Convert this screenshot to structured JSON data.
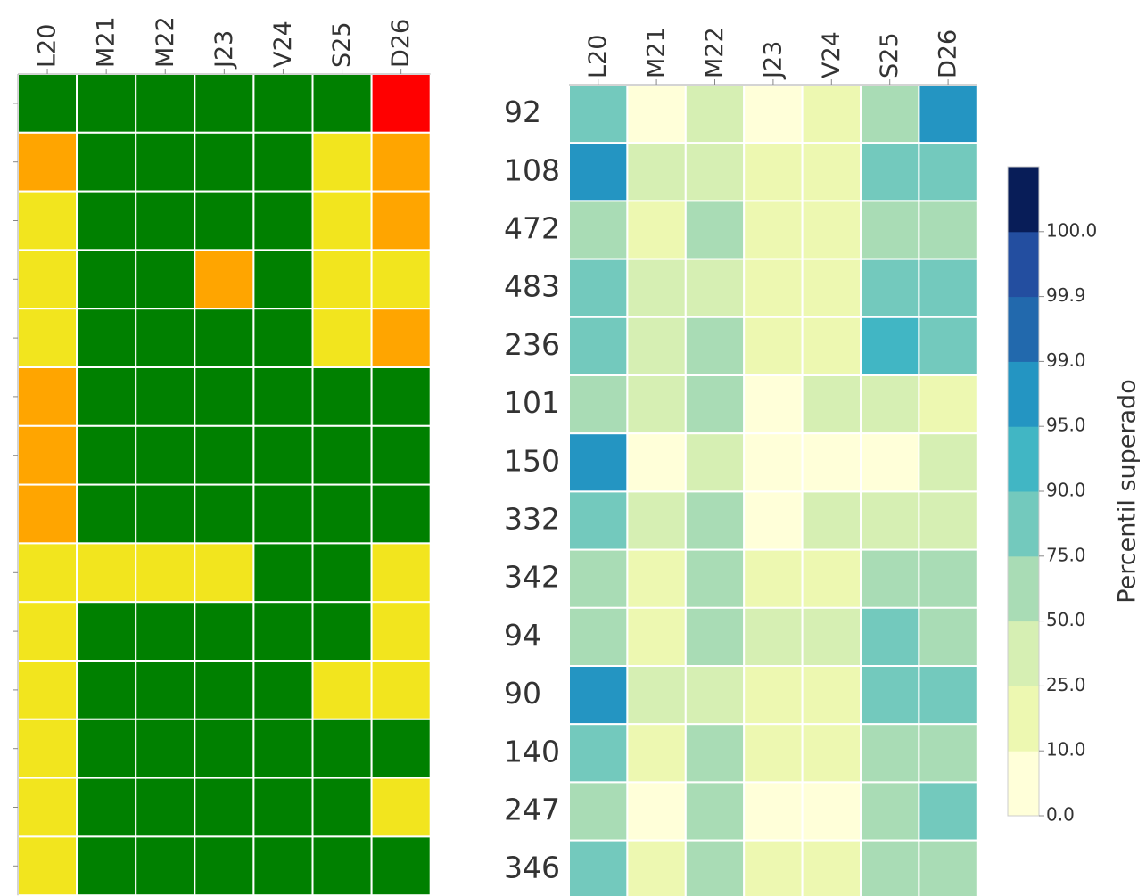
{
  "chart_data": [
    {
      "type": "heatmap",
      "categories": [
        "L20",
        "M21",
        "M22",
        "J23",
        "V24",
        "S25",
        "D26"
      ],
      "values": [
        [
          "#008000",
          "#008000",
          "#008000",
          "#008000",
          "#008000",
          "#008000",
          "#ff0000"
        ],
        [
          "#ffa500",
          "#008000",
          "#008000",
          "#008000",
          "#008000",
          "#f2e51e",
          "#ffa500"
        ],
        [
          "#f2e51e",
          "#008000",
          "#008000",
          "#008000",
          "#008000",
          "#f2e51e",
          "#ffa500"
        ],
        [
          "#f2e51e",
          "#008000",
          "#008000",
          "#ffa500",
          "#008000",
          "#f2e51e",
          "#f2e51e"
        ],
        [
          "#f2e51e",
          "#008000",
          "#008000",
          "#008000",
          "#008000",
          "#f2e51e",
          "#ffa500"
        ],
        [
          "#ffa500",
          "#008000",
          "#008000",
          "#008000",
          "#008000",
          "#008000",
          "#008000"
        ],
        [
          "#ffa500",
          "#008000",
          "#008000",
          "#008000",
          "#008000",
          "#008000",
          "#008000"
        ],
        [
          "#ffa500",
          "#008000",
          "#008000",
          "#008000",
          "#008000",
          "#008000",
          "#008000"
        ],
        [
          "#f2e51e",
          "#f2e51e",
          "#f2e51e",
          "#f2e51e",
          "#008000",
          "#008000",
          "#f2e51e"
        ],
        [
          "#f2e51e",
          "#008000",
          "#008000",
          "#008000",
          "#008000",
          "#008000",
          "#f2e51e"
        ],
        [
          "#f2e51e",
          "#008000",
          "#008000",
          "#008000",
          "#008000",
          "#f2e51e",
          "#f2e51e"
        ],
        [
          "#f2e51e",
          "#008000",
          "#008000",
          "#008000",
          "#008000",
          "#008000",
          "#008000"
        ],
        [
          "#f2e51e",
          "#008000",
          "#008000",
          "#008000",
          "#008000",
          "#008000",
          "#f2e51e"
        ],
        [
          "#f2e51e",
          "#008000",
          "#008000",
          "#008000",
          "#008000",
          "#008000",
          "#008000"
        ]
      ]
    },
    {
      "type": "heatmap",
      "categories": [
        "L20",
        "M21",
        "M22",
        "J23",
        "V24",
        "S25",
        "D26"
      ],
      "rows": [
        "92",
        "108",
        "472",
        "483",
        "236",
        "101",
        "150",
        "332",
        "342",
        "94",
        "90",
        "140",
        "247",
        "346"
      ],
      "values": [
        [
          83,
          5,
          38,
          5,
          18,
          62,
          97
        ],
        [
          97,
          38,
          38,
          18,
          18,
          83,
          83
        ],
        [
          62,
          18,
          62,
          18,
          18,
          62,
          62
        ],
        [
          83,
          38,
          38,
          18,
          18,
          83,
          83
        ],
        [
          83,
          38,
          62,
          18,
          18,
          93,
          83
        ],
        [
          62,
          38,
          62,
          5,
          38,
          38,
          18
        ],
        [
          97,
          5,
          38,
          5,
          5,
          5,
          38
        ],
        [
          83,
          38,
          62,
          5,
          38,
          38,
          38
        ],
        [
          62,
          18,
          62,
          18,
          18,
          62,
          62
        ],
        [
          62,
          18,
          62,
          38,
          38,
          83,
          62
        ],
        [
          97,
          38,
          38,
          18,
          18,
          83,
          83
        ],
        [
          83,
          18,
          62,
          18,
          18,
          62,
          62
        ],
        [
          62,
          5,
          62,
          5,
          5,
          62,
          83
        ],
        [
          83,
          18,
          62,
          18,
          18,
          62,
          62
        ]
      ],
      "colorbar": {
        "label": "Percentil superado",
        "ticks": [
          {
            "value": 0,
            "label": "0.0"
          },
          {
            "value": 10,
            "label": "10.0"
          },
          {
            "value": 25,
            "label": "25.0"
          },
          {
            "value": 50,
            "label": "50.0"
          },
          {
            "value": 75,
            "label": "75.0"
          },
          {
            "value": 90,
            "label": "90.0"
          },
          {
            "value": 95,
            "label": "95.0"
          },
          {
            "value": 99,
            "label": "99.0"
          },
          {
            "value": 99.9,
            "label": "99.9"
          },
          {
            "value": 100,
            "label": "100.0"
          }
        ],
        "colors": [
          "#ffffd9",
          "#edf8b1",
          "#d6efb3",
          "#a9dcb5",
          "#73c9bd",
          "#41b6c4",
          "#2495c2",
          "#2269ad",
          "#234ea0",
          "#081d58"
        ]
      }
    }
  ]
}
